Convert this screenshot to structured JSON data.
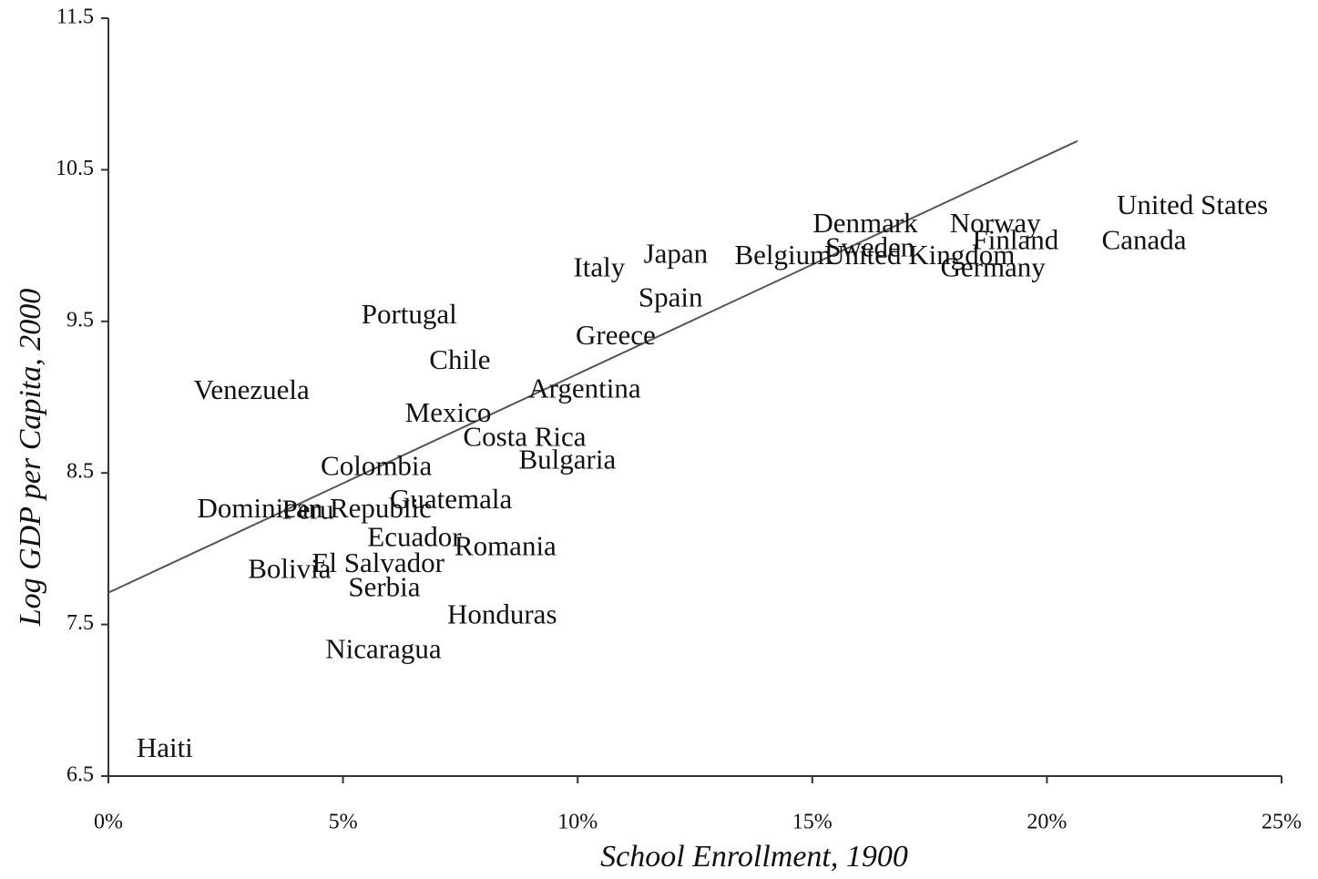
{
  "chart_data": {
    "type": "scatter",
    "x_label": "School Enrollment, 1900",
    "y_label": "Log GDP per Capita, 2000",
    "xlim": [
      0,
      25
    ],
    "ylim": [
      6.5,
      11.5
    ],
    "xticks": [
      {
        "value": 0,
        "label": "0%"
      },
      {
        "value": 5,
        "label": "5%"
      },
      {
        "value": 10,
        "label": "10%"
      },
      {
        "value": 15,
        "label": "15%"
      },
      {
        "value": 20,
        "label": "20%"
      },
      {
        "value": 25,
        "label": "25%"
      }
    ],
    "yticks": [
      6.5,
      7.5,
      8.5,
      9.5,
      10.5,
      11.5
    ],
    "color": "#111111",
    "points": {
      "labels": [
        "United States",
        "Canada",
        "Denmark",
        "Norway",
        "Belgium",
        "Sweden",
        "United Kingdom",
        "Finland",
        "Germany",
        "Japan",
        "Italy",
        "Spain",
        "Greece",
        "Portugal",
        "Chile",
        "Argentina",
        "Venezuela",
        "Mexico",
        "Costa Rica",
        "Bulgaria",
        "Colombia",
        "Dominican Republic",
        "Peru",
        "Guatemala",
        "Ecuador",
        "Romania",
        "El Salvador",
        "Bolivia",
        "Serbia",
        "Honduras",
        "Nicaragua",
        "Haiti"
      ],
      "x": [
        23.1,
        22.07,
        16.13,
        18.9,
        14.38,
        16.23,
        17.29,
        19.33,
        18.85,
        12.09,
        10.46,
        11.98,
        10.81,
        6.41,
        7.49,
        10.15,
        3.05,
        7.24,
        8.87,
        9.78,
        5.71,
        4.39,
        4.25,
        7.3,
        6.52,
        8.46,
        5.75,
        3.86,
        5.88,
        8.39,
        5.86,
        1.2
      ],
      "y": [
        10.25,
        10.02,
        10.13,
        10.13,
        9.92,
        9.97,
        9.92,
        10.02,
        9.84,
        9.93,
        9.84,
        9.64,
        9.39,
        9.53,
        9.23,
        9.04,
        9.03,
        8.88,
        8.72,
        8.57,
        8.53,
        8.25,
        8.24,
        8.31,
        8.06,
        8.0,
        7.89,
        7.85,
        7.73,
        7.55,
        7.32,
        6.67
      ]
    },
    "trendline": {
      "x": [
        0,
        20.65
      ],
      "y": [
        7.71,
        10.69
      ],
      "color": "#555555"
    }
  }
}
